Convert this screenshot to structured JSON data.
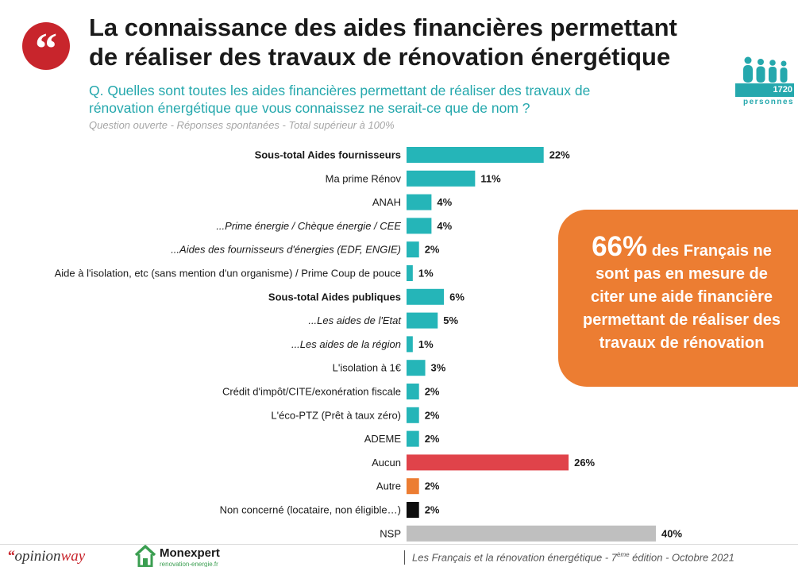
{
  "header": {
    "quote_glyph": "“",
    "title_line1": "La connaissance des aides financières permettant",
    "title_line2": "de réaliser des travaux de rénovation énergétique",
    "question_line1": "Q. Quelles sont toutes les aides financières permettant de réaliser des travaux de",
    "question_line2": "rénovation énergétique que vous connaissez ne serait-ce que de nom ?",
    "subnote": "Question ouverte - Réponses spontanées - Total supérieur à 100%"
  },
  "sample": {
    "count": "1720",
    "label": "personnes",
    "icon": "people-group-icon"
  },
  "chart_data": {
    "type": "bar",
    "orientation": "horizontal",
    "value_unit": "%",
    "grid": false,
    "categories": [
      {
        "label": "Sous-total Aides fournisseurs",
        "value": 22,
        "value_label": "22%",
        "style": "bold",
        "color": "#25b5b8"
      },
      {
        "label": "Ma prime Rénov",
        "value": 11,
        "value_label": "11%",
        "style": "normal",
        "color": "#25b5b8"
      },
      {
        "label": "ANAH",
        "value": 4,
        "value_label": "4%",
        "style": "normal",
        "color": "#25b5b8"
      },
      {
        "label": "...Prime énergie / Chèque énergie / CEE",
        "value": 4,
        "value_label": "4%",
        "style": "italic",
        "color": "#25b5b8"
      },
      {
        "label": "...Aides des fournisseurs d'énergies (EDF, ENGIE)",
        "value": 2,
        "value_label": "2%",
        "style": "italic",
        "color": "#25b5b8"
      },
      {
        "label": "Aide à l'isolation, etc (sans mention d'un organisme) / Prime Coup de pouce",
        "value": 1,
        "value_label": "1%",
        "style": "normal",
        "color": "#25b5b8"
      },
      {
        "label": "Sous-total Aides publiques",
        "value": 6,
        "value_label": "6%",
        "style": "bold",
        "color": "#25b5b8"
      },
      {
        "label": "...Les aides de l'Etat",
        "value": 5,
        "value_label": "5%",
        "style": "italic",
        "color": "#25b5b8"
      },
      {
        "label": "...Les aides de la région",
        "value": 1,
        "value_label": "1%",
        "style": "italic",
        "color": "#25b5b8"
      },
      {
        "label": "L'isolation à 1€",
        "value": 3,
        "value_label": "3%",
        "style": "normal",
        "color": "#25b5b8"
      },
      {
        "label": "Crédit d'impôt/CITE/exonération fiscale",
        "value": 2,
        "value_label": "2%",
        "style": "normal",
        "color": "#25b5b8"
      },
      {
        "label": "L'éco-PTZ (Prêt à taux zéro)",
        "value": 2,
        "value_label": "2%",
        "style": "normal",
        "color": "#25b5b8"
      },
      {
        "label": "ADEME",
        "value": 2,
        "value_label": "2%",
        "style": "normal",
        "color": "#25b5b8"
      },
      {
        "label": "Aucun",
        "value": 26,
        "value_label": "26%",
        "style": "normal",
        "color": "#e0434a"
      },
      {
        "label": "Autre",
        "value": 2,
        "value_label": "2%",
        "style": "normal",
        "color": "#ec7d32"
      },
      {
        "label": "Non concerné (locataire, non éligible…)",
        "value": 2,
        "value_label": "2%",
        "style": "normal",
        "color": "#0d0d0d"
      },
      {
        "label": "NSP",
        "value": 40,
        "value_label": "40%",
        "style": "normal",
        "color": "#bfbfbf"
      }
    ]
  },
  "callout": {
    "big": "66%",
    "text_part1": " des Français ne",
    "text_part2": "sont pas en mesure de",
    "text_part3": "citer une aide financière",
    "text_part4": "permettant de réaliser des",
    "text_part5": "travaux de rénovation",
    "color": "#ec7d32"
  },
  "footer": {
    "logo_quote": "“",
    "logo_opinion": "opinion",
    "logo_way": "way",
    "monexpert_name": "Monexpert",
    "monexpert_url": "renovation-energie.fr",
    "monexpert_icon": "house-icon",
    "source_part1": "Les Français et la rénovation énergétique - 7",
    "source_sup": "ème",
    "source_part2": " édition - Octobre 2021"
  },
  "colors": {
    "accent_teal": "#25a8ad",
    "brand_red": "#c8252c"
  }
}
